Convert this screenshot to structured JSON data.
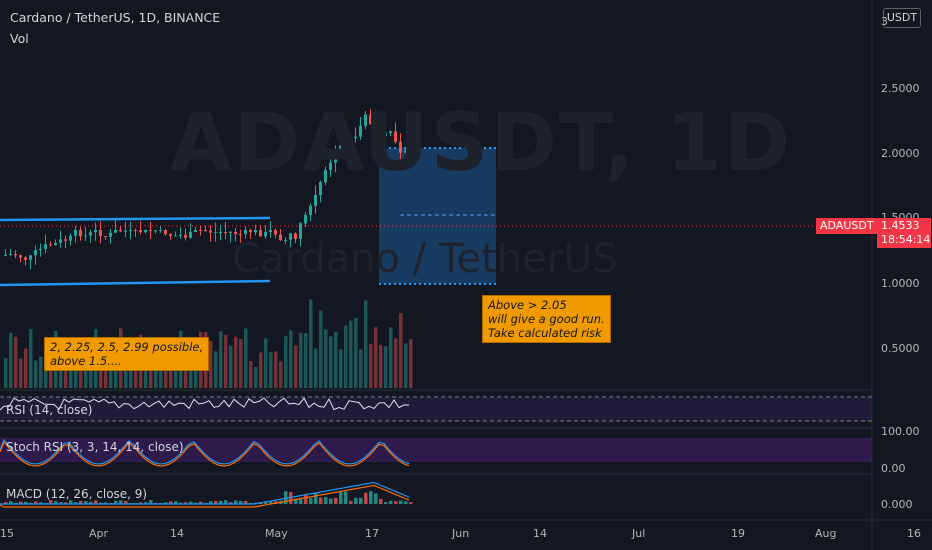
{
  "header": {
    "title": "Cardano / TetherUS, 1D, BINANCE",
    "volume_label": "Vol",
    "currency_button": "USDT"
  },
  "watermark": {
    "symbol": "ADAUSDT, 1D",
    "name": "Cardano / TetherUS"
  },
  "price_axis": {
    "ticks": [
      "3",
      "2.5000",
      "2.0000",
      "1.5000",
      "1.0000",
      "0.5000"
    ]
  },
  "last_price": {
    "symbol_tag": "ADAUSDT",
    "price": "1.4533",
    "countdown": "18:54:14"
  },
  "annotations": {
    "left_note": [
      "2, 2.25, 2.5, 2.99 possible,",
      "above 1.5...."
    ],
    "right_note": [
      "Above > 2.05",
      "will give a good run.",
      "Take calculated risk"
    ]
  },
  "indicators": {
    "rsi": {
      "label": "RSI (14, close)"
    },
    "stoch": {
      "label": "Stoch RSI (3, 3, 14, 14, close)",
      "ticks": [
        "100.00",
        "0.00"
      ]
    },
    "macd": {
      "label": "MACD (12, 26, close, 9)",
      "ticks": [
        "0.000"
      ]
    }
  },
  "time_axis": {
    "ticks": [
      "15",
      "Apr",
      "14",
      "May",
      "17",
      "Jun",
      "14",
      "Jul",
      "19",
      "Aug",
      "16"
    ]
  },
  "colors": {
    "background": "#131722",
    "up": "#26a69a",
    "down": "#ef5350",
    "channel": "#2196f3",
    "note": "#f09a00",
    "price_tag": "#f23645"
  }
}
